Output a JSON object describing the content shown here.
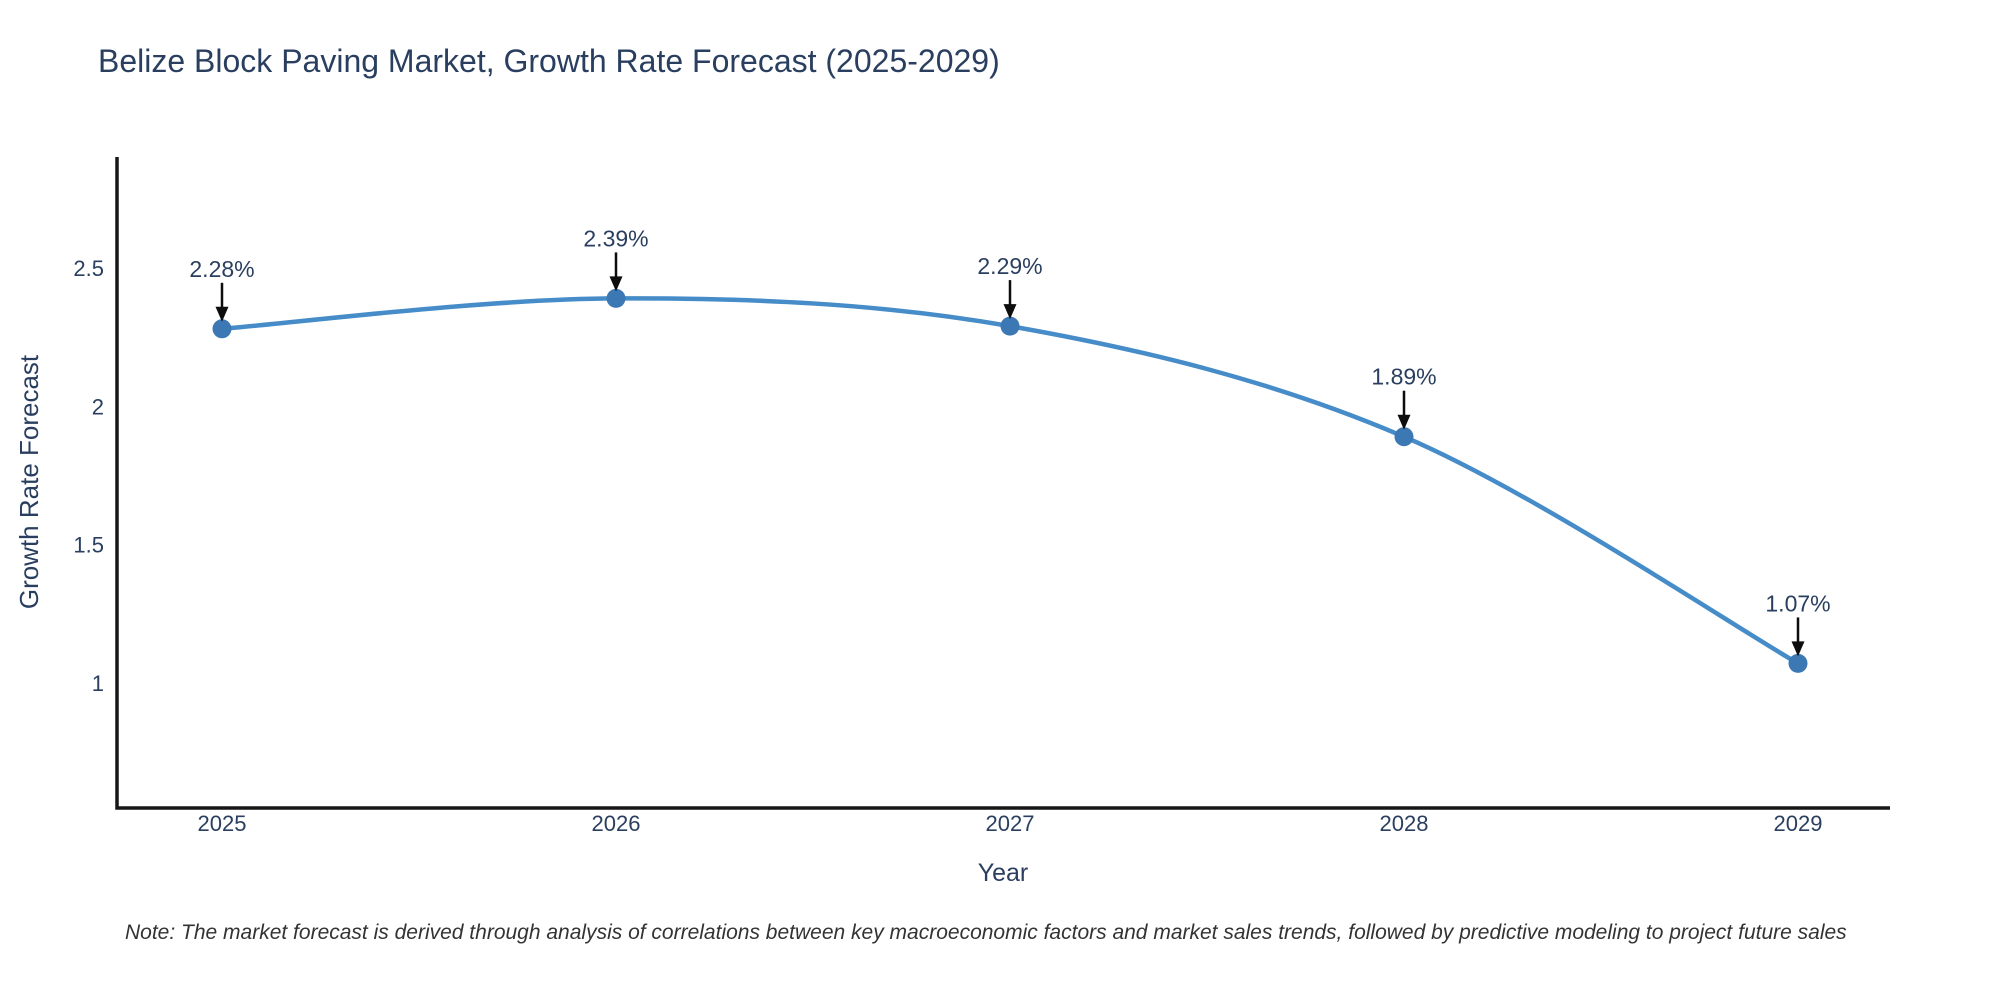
{
  "chart_data": {
    "type": "line",
    "title": "Belize Block Paving Market, Growth Rate Forecast (2025-2029)",
    "xlabel": "Year",
    "ylabel": "Growth Rate Forecast",
    "categories": [
      "2025",
      "2026",
      "2027",
      "2028",
      "2029"
    ],
    "values": [
      2.28,
      2.39,
      2.29,
      1.89,
      1.07
    ],
    "point_labels": [
      "2.28%",
      "2.39%",
      "2.29%",
      "1.89%",
      "1.07%"
    ],
    "ytick_labels": [
      "2.5",
      "2",
      "1.5",
      "1"
    ],
    "ytick_values": [
      2.5,
      2.0,
      1.5,
      1.0
    ],
    "ylim": [
      0.55,
      2.9
    ],
    "grid": false,
    "legend": false,
    "line_shape": "spline",
    "line_color": "#468cc8",
    "marker_color": "#3c78b4",
    "axis_color": "#171717",
    "text_color": "#2a3f5f",
    "arrow_color": "#0d0d0d"
  },
  "note": {
    "text": "Note: The market forecast is derived through analysis of correlations between key macroeconomic factors and market sales trends, followed by predictive modeling to project future sales",
    "color": "#333333"
  }
}
